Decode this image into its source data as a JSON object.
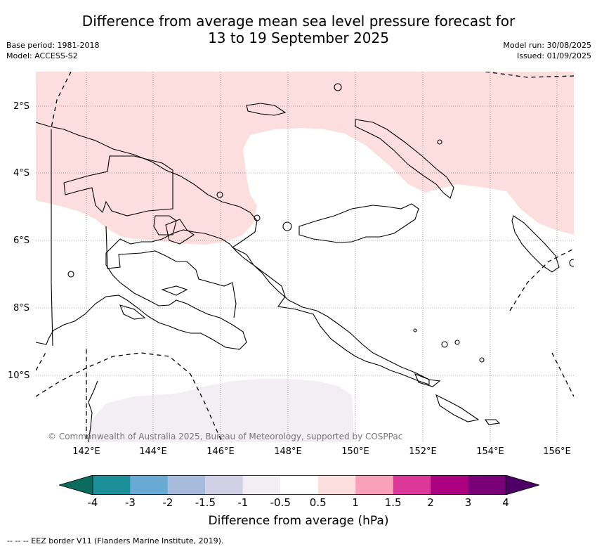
{
  "header": {
    "title_line1": "Difference from average mean sea level pressure forecast for",
    "title_line2": "13 to 19 September 2025",
    "base_period": "Base period: 1981-2018",
    "model": "Model: ACCESS-S2",
    "model_run": "Model run: 30/08/2025",
    "issued": "Issued: 01/09/2025"
  },
  "map": {
    "lat_labels": [
      "2°S",
      "4°S",
      "6°S",
      "8°S",
      "10°S"
    ],
    "lon_labels": [
      "142°E",
      "144°E",
      "146°E",
      "148°E",
      "150°E",
      "152°E",
      "154°E",
      "156°E"
    ],
    "credit": "© Commonwealth of Australia 2025, Bureau of Meteorology, supported by COSPPac",
    "anomaly_regions": [
      {
        "name": "north",
        "range_hPa": "0.5 to 1",
        "color": "#fcdede"
      },
      {
        "name": "south",
        "range_hPa": "-1 to -0.5",
        "color": "#f2eef4"
      }
    ],
    "land_outline_color": "#000000",
    "eez_line_style": "dashed"
  },
  "colorbar": {
    "ticks": [
      "-4",
      "-3",
      "-2",
      "-1.5",
      "-1",
      "-0.5",
      "0.5",
      "1",
      "1.5",
      "2",
      "3",
      "4"
    ],
    "colors": [
      "#0b6b5e",
      "#1b9098",
      "#68aad4",
      "#a7bcdd",
      "#d0d0e6",
      "#f2eef4",
      "#ffffff",
      "#fcdede",
      "#f9a1ba",
      "#de379a",
      "#ac0080",
      "#7a0077",
      "#4d0066"
    ],
    "label": "Difference from average (hPa)"
  },
  "legend_note": "-- -- -- EEZ border V11 (Flanders Marine Institute, 2019)."
}
